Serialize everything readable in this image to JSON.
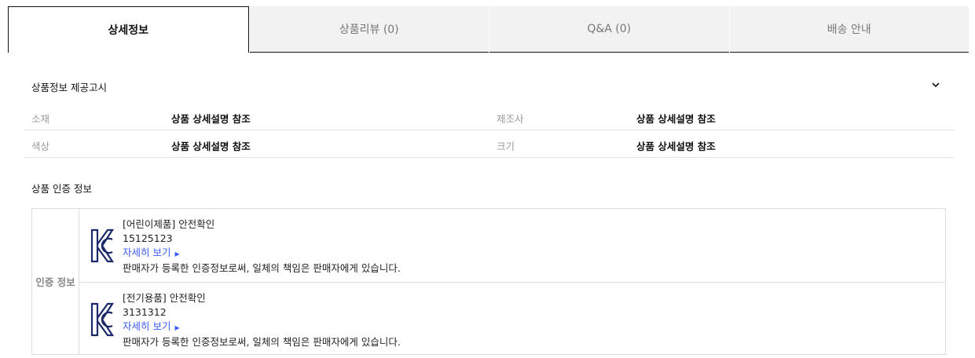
{
  "tabs": [
    {
      "label": "상세정보",
      "active": true
    },
    {
      "label": "상품리뷰 (0)"
    },
    {
      "label": "Q&A (0)"
    },
    {
      "label": "배송 안내"
    }
  ],
  "notice": {
    "title": "상품정보 제공고시",
    "icon": "chevron-down-icon",
    "rows": [
      {
        "l1": "소재",
        "v1": "상품 상세설명 참조",
        "l2": "제조사",
        "v2": "상품 상세설명 참조"
      },
      {
        "l1": "색상",
        "v1": "상품 상세설명 참조",
        "l2": "크기",
        "v2": "상품 상세설명 참조"
      }
    ]
  },
  "certification": {
    "title": "상품 인증 정보",
    "label": "인증 정보",
    "items": [
      {
        "name": "[어린이제품] 안전확인",
        "number": "15125123",
        "link": "자세히 보기",
        "notice": "판매자가 등록한 인증정보로써, 일체의 책임은 판매자에게 있습니다."
      },
      {
        "name": "[전기용품] 안전확인",
        "number": "3131312",
        "link": "자세히 보기",
        "notice": "판매자가 등록한 인증정보로써, 일체의 책임은 판매자에게 있습니다."
      }
    ]
  },
  "colors": {
    "link": "#3b5bf5",
    "kc_logo": "#1c2a6b"
  }
}
